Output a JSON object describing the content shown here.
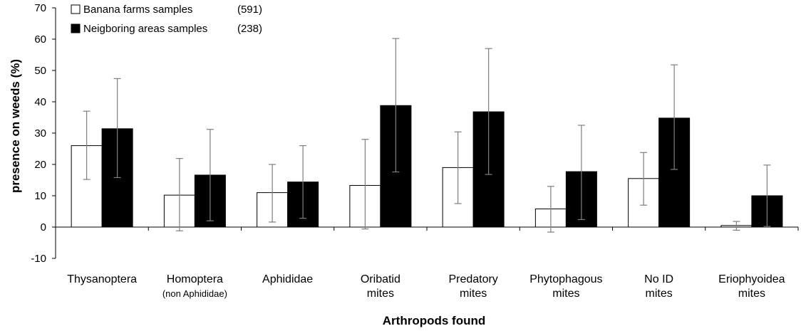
{
  "chart_data": {
    "type": "bar",
    "title": "",
    "xlabel": "Arthropods found",
    "ylabel": "presence on weeds (%)",
    "ylim": [
      -10,
      70
    ],
    "yticks": [
      -10,
      0,
      10,
      20,
      30,
      40,
      50,
      60,
      70
    ],
    "grid": false,
    "legend_position": "top-left",
    "categories": [
      [
        "Thysanoptera"
      ],
      [
        "Homoptera",
        "(non Aphididae)"
      ],
      [
        "Aphididae"
      ],
      [
        "Oribatid",
        "mites"
      ],
      [
        "Predatory",
        "mites"
      ],
      [
        "Phytophagous",
        "mites"
      ],
      [
        "No ID",
        "mites"
      ],
      [
        "Eriophyoidea",
        "mites"
      ]
    ],
    "series": [
      {
        "name": "Banana farms samples",
        "n_label": "(591)",
        "fill": "#ffffff",
        "values": [
          26,
          10.2,
          11,
          13.3,
          19,
          5.8,
          15.5,
          0.5
        ],
        "err_low": [
          15.2,
          -1.2,
          1.6,
          -0.6,
          7.5,
          -1.6,
          7.0,
          -1.0
        ],
        "err_high": [
          37,
          21.9,
          20,
          28,
          30.4,
          13,
          23.8,
          1.8
        ]
      },
      {
        "name": "Neigboring areas samples",
        "n_label": "(238)",
        "fill": "#000000",
        "values": [
          31.4,
          16.6,
          14.4,
          38.8,
          36.8,
          17.7,
          34.8,
          10
        ],
        "err_low": [
          15.8,
          2.0,
          2.8,
          17.6,
          16.8,
          2.4,
          18.4,
          0.2
        ],
        "err_high": [
          47.4,
          31.2,
          26,
          60.2,
          57,
          32.5,
          51.8,
          19.8
        ]
      }
    ]
  }
}
